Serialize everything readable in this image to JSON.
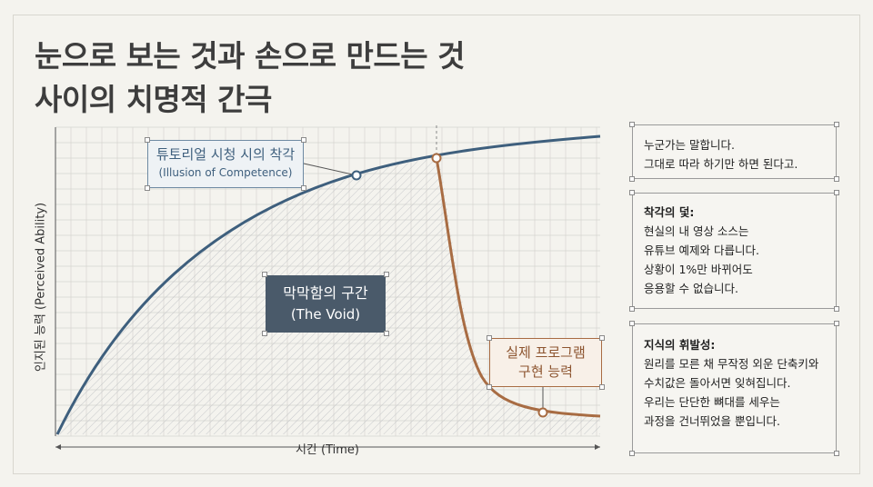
{
  "title": {
    "line1": "눈으로 보는 것과 손으로 만드는 것",
    "line2": "사이의 치명적 간극"
  },
  "axes": {
    "y_label": "인지된 능력 (Perceived Ability)",
    "x_label": "시간 (Time)"
  },
  "callouts": {
    "illusion": {
      "line1": "튜토리얼 시청 시의 착각",
      "line2": "(Illusion of Competence)"
    },
    "void": {
      "line1": "막막함의 구간",
      "line2": "(The Void)"
    },
    "real": {
      "line1": "실제 프로그램",
      "line2": "구현 능력"
    }
  },
  "notes": [
    {
      "lines": [
        "누군가는 말합니다.",
        "그대로 따라 하기만 하면 된다고."
      ]
    },
    {
      "head": "착각의 덫:",
      "lines": [
        "현실의 내 영상 소스는",
        "유튜브 예제와 다릅니다.",
        "상황이 1%만 바뀌어도",
        "응용할 수 없습니다."
      ]
    },
    {
      "head": "지식의 휘발성:",
      "lines": [
        "원리를 모른 채 무작정 외운 단축키와",
        "수치값은 돌아서면 잊혀집니다.",
        "우리는 단단한 뼈대를 세우는",
        "과정을 건너뛰었을 뿐입니다."
      ]
    }
  ],
  "colors": {
    "perceived_curve": "#3e5f7d",
    "real_curve": "#a86c43",
    "void_fill": "#4a5a6a"
  }
}
